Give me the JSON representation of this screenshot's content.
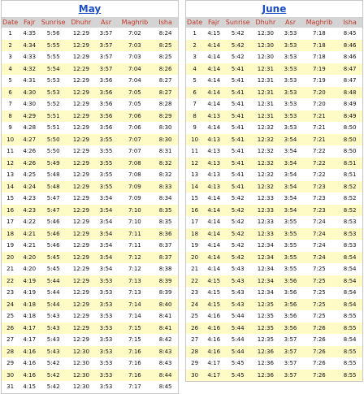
{
  "columns": [
    "Date",
    "Fajr",
    "Sunrise",
    "Dhuhr",
    "Asr",
    "Maghrib",
    "Isha"
  ],
  "may": {
    "title": "May",
    "rows": [
      [
        "1",
        "4:35",
        "5:56",
        "12:29",
        "3:57",
        "7:02",
        "8:24"
      ],
      [
        "2",
        "4:34",
        "5:55",
        "12:29",
        "3:57",
        "7:03",
        "8:25"
      ],
      [
        "3",
        "4:33",
        "5:55",
        "12:29",
        "3:57",
        "7:03",
        "8:25"
      ],
      [
        "4",
        "4:32",
        "5:54",
        "12:29",
        "3:57",
        "7:04",
        "8:26"
      ],
      [
        "5",
        "4:31",
        "5:53",
        "12:29",
        "3:56",
        "7:04",
        "8:27"
      ],
      [
        "6",
        "4:30",
        "5:53",
        "12:29",
        "3:56",
        "7:05",
        "8:27"
      ],
      [
        "7",
        "4:30",
        "5:52",
        "12:29",
        "3:56",
        "7:05",
        "8:28"
      ],
      [
        "8",
        "4:29",
        "5:51",
        "12:29",
        "3:56",
        "7:06",
        "8:29"
      ],
      [
        "9",
        "4:28",
        "5:51",
        "12:29",
        "3:56",
        "7:06",
        "8:30"
      ],
      [
        "10",
        "4:27",
        "5:50",
        "12:29",
        "3:55",
        "7:07",
        "8:30"
      ],
      [
        "11",
        "4:26",
        "5:50",
        "12:29",
        "3:55",
        "7:07",
        "8:31"
      ],
      [
        "12",
        "4:26",
        "5:49",
        "12:29",
        "3:55",
        "7:08",
        "8:32"
      ],
      [
        "13",
        "4:25",
        "5:48",
        "12:29",
        "3:55",
        "7:08",
        "8:32"
      ],
      [
        "14",
        "4:24",
        "5:48",
        "12:29",
        "3:55",
        "7:09",
        "8:33"
      ],
      [
        "15",
        "4:23",
        "5:47",
        "12:29",
        "3:54",
        "7:09",
        "8:34"
      ],
      [
        "16",
        "4:23",
        "5:47",
        "12:29",
        "3:54",
        "7:10",
        "8:35"
      ],
      [
        "17",
        "4:22",
        "5:46",
        "12:29",
        "3:54",
        "7:10",
        "8:35"
      ],
      [
        "18",
        "4:21",
        "5:46",
        "12:29",
        "3:54",
        "7:11",
        "8:36"
      ],
      [
        "19",
        "4:21",
        "5:46",
        "12:29",
        "3:54",
        "7:11",
        "8:37"
      ],
      [
        "20",
        "4:20",
        "5:45",
        "12:29",
        "3:54",
        "7:12",
        "8:37"
      ],
      [
        "21",
        "4:20",
        "5:45",
        "12:29",
        "3:54",
        "7:12",
        "8:38"
      ],
      [
        "22",
        "4:19",
        "5:44",
        "12:29",
        "3:53",
        "7:13",
        "8:39"
      ],
      [
        "23",
        "4:19",
        "5:44",
        "12:29",
        "3:53",
        "7:13",
        "8:39"
      ],
      [
        "24",
        "4:18",
        "5:44",
        "12:29",
        "3:53",
        "7:14",
        "8:40"
      ],
      [
        "25",
        "4:18",
        "5:43",
        "12:29",
        "3:53",
        "7:14",
        "8:41"
      ],
      [
        "26",
        "4:17",
        "5:43",
        "12:29",
        "3:53",
        "7:15",
        "8:41"
      ],
      [
        "27",
        "4:17",
        "5:43",
        "12:29",
        "3:53",
        "7:15",
        "8:42"
      ],
      [
        "28",
        "4:16",
        "5:43",
        "12:30",
        "3:53",
        "7:16",
        "8:43"
      ],
      [
        "29",
        "4:16",
        "5:42",
        "12:30",
        "3:53",
        "7:16",
        "8:43"
      ],
      [
        "30",
        "4:16",
        "5:42",
        "12:30",
        "3:53",
        "7:16",
        "8:44"
      ],
      [
        "31",
        "4:15",
        "5:42",
        "12:30",
        "3:53",
        "7:17",
        "8:45"
      ]
    ]
  },
  "june": {
    "title": "June",
    "rows": [
      [
        "1",
        "4:15",
        "5:42",
        "12:30",
        "3:53",
        "7:18",
        "8:45"
      ],
      [
        "2",
        "4:14",
        "5:42",
        "12:30",
        "3:53",
        "7:18",
        "8:46"
      ],
      [
        "3",
        "4:14",
        "5:42",
        "12:30",
        "3:53",
        "7:18",
        "8:46"
      ],
      [
        "4",
        "4:14",
        "5:41",
        "12:31",
        "3:53",
        "7:19",
        "8:47"
      ],
      [
        "5",
        "4:14",
        "5:41",
        "12:31",
        "3:53",
        "7:19",
        "8:47"
      ],
      [
        "6",
        "4:14",
        "5:41",
        "12:31",
        "3:53",
        "7:20",
        "8:48"
      ],
      [
        "7",
        "4:14",
        "5:41",
        "12:31",
        "3:53",
        "7:20",
        "8:49"
      ],
      [
        "8",
        "4:13",
        "5:41",
        "12:31",
        "3:53",
        "7:21",
        "8:49"
      ],
      [
        "9",
        "4:14",
        "5:41",
        "12:32",
        "3:53",
        "7:21",
        "8:50"
      ],
      [
        "10",
        "4:13",
        "5:41",
        "12:32",
        "3:54",
        "7:21",
        "8:50"
      ],
      [
        "11",
        "4:13",
        "5:41",
        "12:32",
        "3:54",
        "7:22",
        "8:50"
      ],
      [
        "12",
        "4:13",
        "5:41",
        "12:32",
        "3:54",
        "7:22",
        "8:51"
      ],
      [
        "13",
        "4:13",
        "5:41",
        "12:32",
        "3:54",
        "7:22",
        "8:51"
      ],
      [
        "14",
        "4:13",
        "5:41",
        "12:32",
        "3:54",
        "7:23",
        "8:52"
      ],
      [
        "15",
        "4:14",
        "5:42",
        "12:33",
        "3:54",
        "7:23",
        "8:52"
      ],
      [
        "16",
        "4:14",
        "5:42",
        "12:33",
        "3:54",
        "7:23",
        "8:52"
      ],
      [
        "17",
        "4:14",
        "5:42",
        "12:33",
        "3:55",
        "7:24",
        "8:53"
      ],
      [
        "18",
        "4:14",
        "5:42",
        "12:33",
        "3:55",
        "7:24",
        "8:53"
      ],
      [
        "19",
        "4:14",
        "5:42",
        "12:34",
        "3:55",
        "7:24",
        "8:53"
      ],
      [
        "20",
        "4:14",
        "5:42",
        "12:34",
        "3:55",
        "7:24",
        "8:54"
      ],
      [
        "21",
        "4:14",
        "5:43",
        "12:34",
        "3:55",
        "7:25",
        "8:54"
      ],
      [
        "22",
        "4:15",
        "5:43",
        "12:34",
        "3:56",
        "7:25",
        "8:54"
      ],
      [
        "23",
        "4:15",
        "5:43",
        "12:34",
        "3:56",
        "7:25",
        "8:54"
      ],
      [
        "24",
        "4:15",
        "5:43",
        "12:35",
        "3:56",
        "7:25",
        "8:54"
      ],
      [
        "25",
        "4:16",
        "5:44",
        "12:35",
        "3:56",
        "7:25",
        "8:55"
      ],
      [
        "26",
        "4:16",
        "5:44",
        "12:35",
        "3:56",
        "7:26",
        "8:55"
      ],
      [
        "27",
        "4:16",
        "5:44",
        "12:35",
        "3:57",
        "7:26",
        "8:54"
      ],
      [
        "28",
        "4:16",
        "5:44",
        "12:36",
        "3:57",
        "7:26",
        "8:55"
      ],
      [
        "29",
        "4:17",
        "5:45",
        "12:36",
        "3:57",
        "7:26",
        "8:55"
      ],
      [
        "30",
        "4:17",
        "5:45",
        "12:36",
        "3:57",
        "7:26",
        "8:55"
      ]
    ]
  }
}
